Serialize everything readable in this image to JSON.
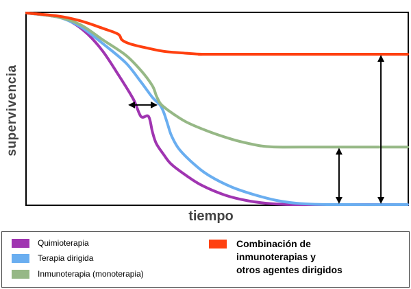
{
  "chart_data": {
    "type": "line",
    "title": "",
    "xlabel": "tiempo",
    "ylabel": "supervivencia",
    "xlim": [
      0,
      100
    ],
    "ylim": [
      0,
      100
    ],
    "grid": false,
    "legend_position": "bottom",
    "series": [
      {
        "name": "Quimioterapia",
        "color": "#a035b1",
        "x": [
          0,
          8,
          12,
          16,
          20,
          24,
          28,
          30,
          32,
          33,
          34,
          36,
          38,
          42,
          46,
          52,
          58,
          64,
          70,
          80,
          100
        ],
        "y": [
          100,
          98,
          95,
          89,
          80,
          68,
          55,
          46,
          46,
          38,
          32,
          26,
          21,
          15,
          10,
          5,
          2,
          0.5,
          0,
          0,
          0
        ]
      },
      {
        "name": "Terapia dirigida",
        "color": "#6aaef0",
        "x": [
          0,
          8,
          14,
          20,
          26,
          30,
          33,
          35,
          36,
          37,
          38,
          40,
          44,
          48,
          54,
          60,
          66,
          72,
          80,
          100
        ],
        "y": [
          100,
          98,
          93,
          84,
          74,
          64,
          56,
          52,
          48,
          42,
          36,
          29,
          21,
          15,
          9,
          5,
          2,
          0.5,
          0,
          0
        ]
      },
      {
        "name": "Inmunoterapia (monoterapia)",
        "color": "#96b886",
        "x": [
          0,
          8,
          14,
          20,
          26,
          30,
          33,
          34,
          35,
          36,
          38,
          42,
          48,
          54,
          58,
          62,
          66,
          72,
          100
        ],
        "y": [
          100,
          98,
          94,
          86,
          78,
          70,
          62,
          57,
          53,
          51,
          48,
          43,
          38,
          34,
          32,
          30.5,
          30,
          30,
          30
        ]
      },
      {
        "name": "Combinación de\ninmunoterapias y\notros agentes dirigidos",
        "color": "#ff4010",
        "x": [
          0,
          8,
          14,
          20,
          24,
          25,
          27,
          31,
          36,
          42,
          46,
          50,
          100
        ],
        "y": [
          100,
          98.5,
          96,
          92,
          89,
          86,
          84,
          82,
          80,
          79,
          78.5,
          78.5,
          78.5
        ]
      }
    ],
    "annotations": [
      {
        "type": "double-arrow-horizontal",
        "x": [
          27,
          34
        ],
        "y": 52
      },
      {
        "type": "double-arrow-vertical",
        "x": 82,
        "y": [
          0,
          30
        ]
      },
      {
        "type": "double-arrow-vertical",
        "x": 93,
        "y": [
          0,
          78.5
        ]
      }
    ]
  },
  "legend": {
    "items": [
      {
        "label": "Quimioterapia",
        "color": "#a035b1"
      },
      {
        "label": "Terapia dirigida",
        "color": "#6aaef0"
      },
      {
        "label": "Inmunoterapia (monoterapia)",
        "color": "#96b886"
      },
      {
        "label": "Combinación de\ninmunoterapias y\notros agentes dirigidos",
        "color": "#ff4010"
      }
    ]
  }
}
